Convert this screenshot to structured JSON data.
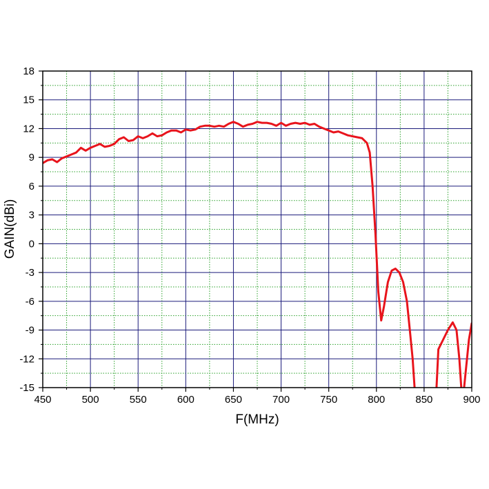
{
  "chart_data": {
    "type": "line",
    "title": "",
    "xlabel": "F(MHz)",
    "ylabel": "GAIN(dBi)",
    "xlim": [
      450,
      900
    ],
    "ylim": [
      -15,
      18
    ],
    "xticks": [
      450,
      500,
      550,
      600,
      650,
      700,
      750,
      800,
      850,
      900
    ],
    "yticks": [
      18,
      15,
      12,
      9,
      6,
      3,
      0,
      -3,
      -6,
      -9,
      -12,
      -15
    ],
    "grid": true,
    "line_color": "#e8141c",
    "major_grid_color": "#1a1a7a",
    "minor_grid_color": "#2aa02a",
    "series": [
      {
        "points": [
          [
            450,
            8.4
          ],
          [
            455,
            8.7
          ],
          [
            460,
            8.8
          ],
          [
            465,
            8.5
          ],
          [
            470,
            8.9
          ],
          [
            475,
            9.1
          ],
          [
            480,
            9.3
          ],
          [
            485,
            9.5
          ],
          [
            490,
            10.0
          ],
          [
            495,
            9.7
          ],
          [
            500,
            10.0
          ],
          [
            505,
            10.2
          ],
          [
            510,
            10.4
          ],
          [
            515,
            10.1
          ],
          [
            520,
            10.2
          ],
          [
            525,
            10.4
          ],
          [
            530,
            10.9
          ],
          [
            535,
            11.1
          ],
          [
            540,
            10.7
          ],
          [
            545,
            10.8
          ],
          [
            550,
            11.2
          ],
          [
            555,
            11.0
          ],
          [
            560,
            11.2
          ],
          [
            565,
            11.5
          ],
          [
            570,
            11.2
          ],
          [
            575,
            11.3
          ],
          [
            580,
            11.6
          ],
          [
            585,
            11.8
          ],
          [
            590,
            11.8
          ],
          [
            595,
            11.6
          ],
          [
            600,
            11.9
          ],
          [
            605,
            11.8
          ],
          [
            610,
            11.9
          ],
          [
            615,
            12.2
          ],
          [
            620,
            12.3
          ],
          [
            625,
            12.3
          ],
          [
            630,
            12.2
          ],
          [
            635,
            12.3
          ],
          [
            640,
            12.2
          ],
          [
            645,
            12.5
          ],
          [
            650,
            12.7
          ],
          [
            655,
            12.5
          ],
          [
            660,
            12.2
          ],
          [
            665,
            12.4
          ],
          [
            670,
            12.5
          ],
          [
            675,
            12.7
          ],
          [
            680,
            12.6
          ],
          [
            685,
            12.6
          ],
          [
            690,
            12.5
          ],
          [
            695,
            12.3
          ],
          [
            700,
            12.6
          ],
          [
            705,
            12.3
          ],
          [
            710,
            12.5
          ],
          [
            715,
            12.6
          ],
          [
            720,
            12.5
          ],
          [
            725,
            12.6
          ],
          [
            730,
            12.4
          ],
          [
            735,
            12.5
          ],
          [
            740,
            12.2
          ],
          [
            745,
            12.0
          ],
          [
            750,
            11.8
          ],
          [
            755,
            11.6
          ],
          [
            760,
            11.7
          ],
          [
            765,
            11.5
          ],
          [
            770,
            11.3
          ],
          [
            775,
            11.2
          ],
          [
            780,
            11.1
          ],
          [
            785,
            11.0
          ],
          [
            790,
            10.5
          ],
          [
            793,
            9.5
          ],
          [
            796,
            6.0
          ],
          [
            799,
            1.0
          ],
          [
            802,
            -5.0
          ],
          [
            805,
            -8.0
          ],
          [
            808,
            -6.5
          ],
          [
            812,
            -4.0
          ],
          [
            816,
            -2.8
          ],
          [
            820,
            -2.6
          ],
          [
            824,
            -3.0
          ],
          [
            828,
            -4.0
          ],
          [
            832,
            -6.0
          ],
          [
            835,
            -9.0
          ],
          [
            838,
            -12.0
          ],
          [
            840,
            -15.0
          ],
          [
            863,
            -15.0
          ],
          [
            865,
            -11.0
          ],
          [
            870,
            -10.0
          ],
          [
            875,
            -9.0
          ],
          [
            880,
            -8.2
          ],
          [
            884,
            -9.0
          ],
          [
            887,
            -12.0
          ],
          [
            889,
            -15.0
          ],
          [
            892,
            -15.0
          ],
          [
            894,
            -13.0
          ],
          [
            897,
            -10.0
          ],
          [
            900,
            -8.3
          ]
        ]
      }
    ]
  }
}
